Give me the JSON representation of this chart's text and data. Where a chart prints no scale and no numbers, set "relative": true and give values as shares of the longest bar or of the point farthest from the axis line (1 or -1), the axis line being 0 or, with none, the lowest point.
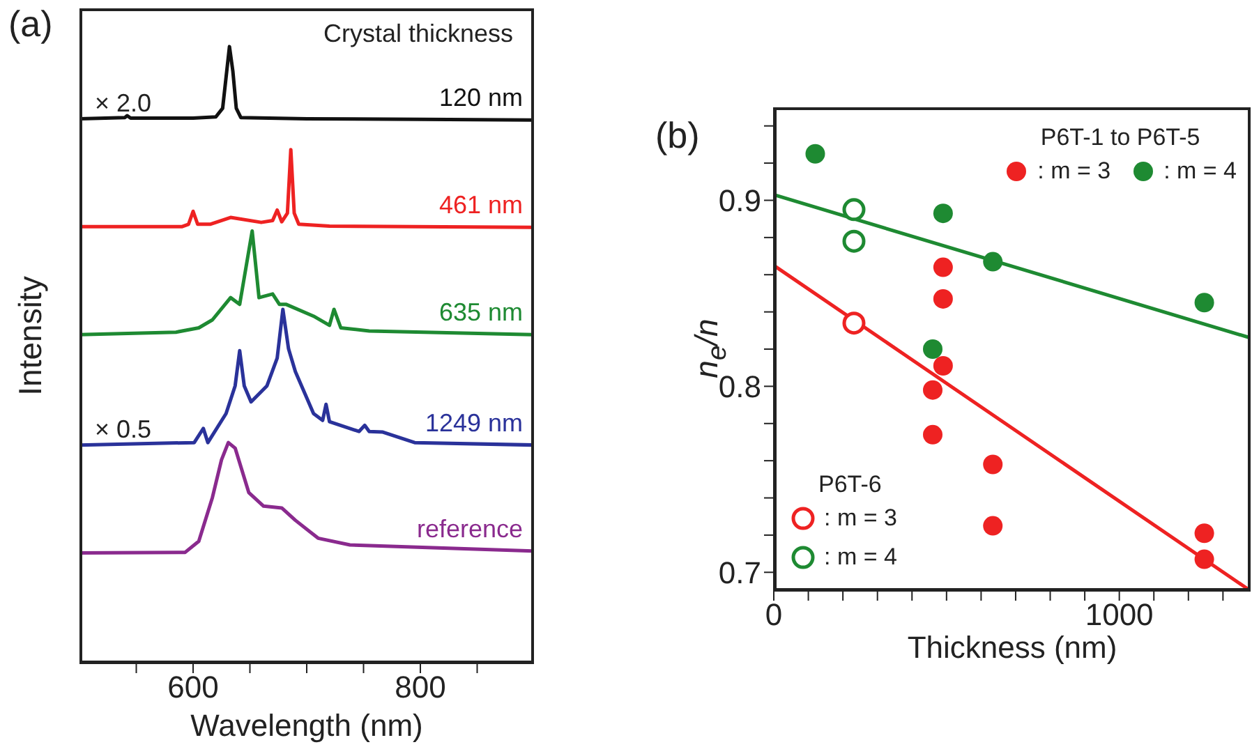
{
  "chart_data": [
    {
      "type": "line",
      "title": "(a)",
      "xlabel": "Wavelength (nm)",
      "ylabel": "Intensity",
      "relative": true,
      "marker": "none",
      "xlim": [
        500,
        900
      ],
      "xticks": [
        {
          "value": 550,
          "label": null
        },
        600,
        {
          "value": 650,
          "label": null
        },
        {
          "value": 700,
          "label": null
        },
        {
          "value": 750,
          "label": null
        },
        800,
        {
          "value": 850,
          "label": null
        }
      ],
      "annotations": [
        "Crystal thickness",
        "× 2.0",
        "× 0.5"
      ],
      "series": [
        {
          "name": "120 nm",
          "color": "#111111",
          "x": [
            500,
            540,
            542,
            545,
            600,
            620,
            626,
            629,
            632,
            635,
            638,
            642,
            700,
            800,
            900
          ],
          "values": [
            0.883,
            0.885,
            0.888,
            0.884,
            0.884,
            0.886,
            0.9,
            0.95,
            1.0,
            0.96,
            0.9,
            0.885,
            0.883,
            0.882,
            0.881
          ]
        },
        {
          "name": "461 nm",
          "color": "#ee2222",
          "x": [
            500,
            590,
            596,
            600,
            604,
            615,
            633,
            660,
            670,
            674,
            678,
            683,
            686,
            689,
            693,
            720,
            900
          ],
          "values": [
            0.708,
            0.708,
            0.712,
            0.733,
            0.712,
            0.712,
            0.723,
            0.715,
            0.718,
            0.735,
            0.716,
            0.73,
            0.833,
            0.73,
            0.712,
            0.709,
            0.707
          ]
        },
        {
          "name": "635 nm",
          "color": "#1e8a32",
          "x": [
            500,
            585,
            605,
            617,
            633,
            641,
            652,
            658,
            670,
            676,
            682,
            706,
            720,
            724,
            730,
            755,
            900
          ],
          "values": [
            0.533,
            0.537,
            0.544,
            0.557,
            0.593,
            0.582,
            0.701,
            0.593,
            0.599,
            0.582,
            0.582,
            0.563,
            0.548,
            0.574,
            0.544,
            0.539,
            0.533
          ]
        },
        {
          "name": "1249 nm",
          "color": "#2a329a",
          "x": [
            500,
            601,
            609,
            613,
            629,
            637,
            641,
            645,
            651,
            665,
            674,
            679,
            684,
            690,
            706,
            714,
            717,
            720,
            746,
            751,
            755,
            767,
            795,
            900
          ],
          "values": [
            0.354,
            0.358,
            0.381,
            0.358,
            0.405,
            0.45,
            0.507,
            0.45,
            0.424,
            0.45,
            0.495,
            0.574,
            0.51,
            0.473,
            0.405,
            0.394,
            0.42,
            0.392,
            0.376,
            0.386,
            0.376,
            0.375,
            0.358,
            0.354
          ]
        },
        {
          "name": "reference",
          "color": "#8a2a8e",
          "x": [
            500,
            593,
            605,
            617,
            625,
            631,
            637,
            649,
            662,
            678,
            690,
            710,
            738,
            900
          ],
          "values": [
            0.179,
            0.18,
            0.198,
            0.269,
            0.33,
            0.358,
            0.349,
            0.277,
            0.255,
            0.252,
            0.232,
            0.203,
            0.192,
            0.182
          ]
        }
      ]
    },
    {
      "type": "scatter",
      "title": "(b)",
      "xlabel": "Thickness (nm)",
      "ylabel": "n$_{e}$/n",
      "legend": "right",
      "xlim": [
        0,
        1380
      ],
      "ylim": [
        0.69,
        0.95
      ],
      "xticks": [
        0,
        {
          "value": 100,
          "label": null
        },
        {
          "value": 200,
          "label": null
        },
        {
          "value": 300,
          "label": null
        },
        {
          "value": 400,
          "label": null
        },
        {
          "value": 500,
          "label": null
        },
        {
          "value": 600,
          "label": null
        },
        {
          "value": 700,
          "label": null
        },
        {
          "value": 800,
          "label": null
        },
        {
          "value": 900,
          "label": null
        },
        1000,
        {
          "value": 1100,
          "label": null
        },
        {
          "value": 1200,
          "label": null
        },
        {
          "value": 1300,
          "label": null
        }
      ],
      "yticks": [
        0.7,
        {
          "value": 0.72,
          "label": null
        },
        {
          "value": 0.74,
          "label": null
        },
        {
          "value": 0.76,
          "label": null
        },
        {
          "value": 0.78,
          "label": null
        },
        0.8,
        {
          "value": 0.82,
          "label": null
        },
        {
          "value": 0.84,
          "label": null
        },
        {
          "value": 0.86,
          "label": null
        },
        {
          "value": 0.88,
          "label": null
        },
        0.9,
        {
          "value": 0.92,
          "label": null
        },
        {
          "value": 0.94,
          "label": null
        }
      ],
      "annotations": [
        "P6T-1 to P6T-5",
        "P6T-6"
      ],
      "series": [
        {
          "name": ": m = 3",
          "color": "#ee2222",
          "marker": "circle",
          "x": [
            490,
            490,
            490,
            460,
            460,
            634,
            634,
            1246,
            1246
          ],
          "values": [
            0.864,
            0.847,
            0.811,
            0.798,
            0.774,
            0.758,
            0.725,
            0.721,
            0.707
          ]
        },
        {
          "name": ": m = 4",
          "color": "#1e8a32",
          "marker": "circle",
          "x": [
            120,
            490,
            634,
            1246,
            460
          ],
          "values": [
            0.925,
            0.893,
            0.867,
            0.845,
            0.82
          ]
        },
        {
          "name": ": m = 3",
          "color": "#ee2222",
          "x": [
            232
          ],
          "values": [
            0.834
          ]
        },
        {
          "name": ": m = 4",
          "color": "#1e8a32",
          "x": [
            232,
            232
          ],
          "values": [
            0.895,
            0.878
          ]
        },
        {
          "type": "line",
          "color": "#1e8a32",
          "x": [
            0,
            1380
          ],
          "values": [
            0.903,
            0.826
          ]
        },
        {
          "type": "line",
          "color": "#ee2222",
          "x": [
            0,
            1380
          ],
          "values": [
            0.865,
            0.69
          ]
        }
      ]
    }
  ]
}
